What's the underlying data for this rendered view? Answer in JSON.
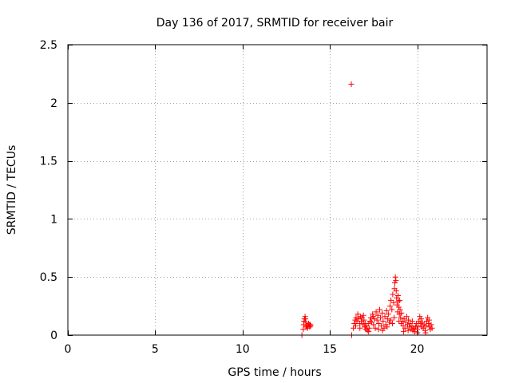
{
  "chart_data": {
    "type": "scatter",
    "title": "Day 136 of 2017, SRMTID for receiver bair",
    "xlabel": "GPS time / hours",
    "ylabel": "SRMTID / TECUs",
    "xlim": [
      0,
      24
    ],
    "ylim": [
      0,
      2.5
    ],
    "x_ticks": [
      0,
      5,
      10,
      15,
      20
    ],
    "x_tick_labels": [
      "0",
      "5",
      "10",
      "15",
      "20"
    ],
    "y_ticks": [
      0,
      0.5,
      1,
      1.5,
      2,
      2.5
    ],
    "y_tick_labels": [
      "0",
      "0.5",
      "1",
      "1.5",
      "2",
      "2.5"
    ],
    "grid": true,
    "marker": "plus",
    "color": "#ff0000",
    "series": [
      {
        "name": "SRMTID",
        "points": [
          [
            13.4,
            0.0
          ],
          [
            16.25,
            0.0
          ],
          [
            16.23,
            2.16
          ],
          [
            13.48,
            0.05
          ],
          [
            13.5,
            0.09
          ],
          [
            13.52,
            0.12
          ],
          [
            13.55,
            0.14
          ],
          [
            13.58,
            0.16
          ],
          [
            13.6,
            0.14
          ],
          [
            13.62,
            0.11
          ],
          [
            13.65,
            0.08
          ],
          [
            13.68,
            0.07
          ],
          [
            13.72,
            0.06
          ],
          [
            13.75,
            0.08
          ],
          [
            13.78,
            0.1
          ],
          [
            13.82,
            0.09
          ],
          [
            13.85,
            0.07
          ],
          [
            13.88,
            0.09
          ],
          [
            13.9,
            0.08
          ],
          [
            16.35,
            0.06
          ],
          [
            16.4,
            0.1
          ],
          [
            16.45,
            0.13
          ],
          [
            16.5,
            0.15
          ],
          [
            16.55,
            0.12
          ],
          [
            16.6,
            0.18
          ],
          [
            16.65,
            0.14
          ],
          [
            16.7,
            0.1
          ],
          [
            16.75,
            0.16
          ],
          [
            16.8,
            0.12
          ],
          [
            16.85,
            0.15
          ],
          [
            16.9,
            0.09
          ],
          [
            16.95,
            0.13
          ],
          [
            17.0,
            0.07
          ],
          [
            17.05,
            0.05
          ],
          [
            17.1,
            0.08
          ],
          [
            17.15,
            0.04
          ],
          [
            17.2,
            0.1
          ],
          [
            17.25,
            0.06
          ],
          [
            17.3,
            0.12
          ],
          [
            17.35,
            0.15
          ],
          [
            17.4,
            0.11
          ],
          [
            17.45,
            0.18
          ],
          [
            17.5,
            0.09
          ],
          [
            17.55,
            0.14
          ],
          [
            17.6,
            0.06
          ],
          [
            17.65,
            0.2
          ],
          [
            17.7,
            0.13
          ],
          [
            17.75,
            0.17
          ],
          [
            17.8,
            0.1
          ],
          [
            17.85,
            0.22
          ],
          [
            17.9,
            0.15
          ],
          [
            17.95,
            0.08
          ],
          [
            18.0,
            0.19
          ],
          [
            18.05,
            0.12
          ],
          [
            18.1,
            0.06
          ],
          [
            18.15,
            0.16
          ],
          [
            18.2,
            0.09
          ],
          [
            18.25,
            0.21
          ],
          [
            18.3,
            0.14
          ],
          [
            18.35,
            0.18
          ],
          [
            18.4,
            0.11
          ],
          [
            18.45,
            0.25
          ],
          [
            18.5,
            0.3
          ],
          [
            18.55,
            0.22
          ],
          [
            18.6,
            0.35
          ],
          [
            18.65,
            0.28
          ],
          [
            18.7,
            0.4
          ],
          [
            18.72,
            0.45
          ],
          [
            18.75,
            0.5
          ],
          [
            18.78,
            0.47
          ],
          [
            18.8,
            0.38
          ],
          [
            18.82,
            0.32
          ],
          [
            18.85,
            0.26
          ],
          [
            18.88,
            0.2
          ],
          [
            18.9,
            0.34
          ],
          [
            18.92,
            0.29
          ],
          [
            18.95,
            0.24
          ],
          [
            18.98,
            0.18
          ],
          [
            19.0,
            0.3
          ],
          [
            19.02,
            0.22
          ],
          [
            19.05,
            0.15
          ],
          [
            19.08,
            0.1
          ],
          [
            19.1,
            0.19
          ],
          [
            19.15,
            0.12
          ],
          [
            19.2,
            0.08
          ],
          [
            19.25,
            0.14
          ],
          [
            19.3,
            0.06
          ],
          [
            19.35,
            0.11
          ],
          [
            19.4,
            0.16
          ],
          [
            19.45,
            0.09
          ],
          [
            19.5,
            0.13
          ],
          [
            19.55,
            0.07
          ],
          [
            19.6,
            0.1
          ],
          [
            19.65,
            0.05
          ],
          [
            19.7,
            0.08
          ],
          [
            19.75,
            0.04
          ],
          [
            19.8,
            0.06
          ],
          [
            19.85,
            0.03
          ],
          [
            19.9,
            0.07
          ],
          [
            19.95,
            0.1
          ],
          [
            20.0,
            0.05
          ],
          [
            20.05,
            0.08
          ],
          [
            20.1,
            0.12
          ],
          [
            20.15,
            0.16
          ],
          [
            20.2,
            0.1
          ],
          [
            20.25,
            0.07
          ],
          [
            20.3,
            0.11
          ],
          [
            20.35,
            0.06
          ],
          [
            20.4,
            0.09
          ],
          [
            20.45,
            0.04
          ],
          [
            20.5,
            0.08
          ],
          [
            20.55,
            0.12
          ],
          [
            20.6,
            0.15
          ],
          [
            20.65,
            0.1
          ],
          [
            20.7,
            0.07
          ],
          [
            20.75,
            0.05
          ],
          [
            20.8,
            0.09
          ],
          [
            20.85,
            0.06
          ],
          [
            17.02,
            0.1
          ],
          [
            17.22,
            0.03
          ],
          [
            17.48,
            0.16
          ],
          [
            17.78,
            0.05
          ],
          [
            18.02,
            0.04
          ],
          [
            18.28,
            0.07
          ],
          [
            18.48,
            0.13
          ],
          [
            18.58,
            0.1
          ],
          [
            18.68,
            0.15
          ],
          [
            18.96,
            0.12
          ],
          [
            19.22,
            0.03
          ],
          [
            19.48,
            0.04
          ],
          [
            19.72,
            0.12
          ],
          [
            20.02,
            0.02
          ],
          [
            20.22,
            0.14
          ],
          [
            20.48,
            0.02
          ],
          [
            20.68,
            0.13
          ],
          [
            16.48,
            0.08
          ],
          [
            16.72,
            0.06
          ],
          [
            16.92,
            0.17
          ]
        ]
      }
    ]
  }
}
